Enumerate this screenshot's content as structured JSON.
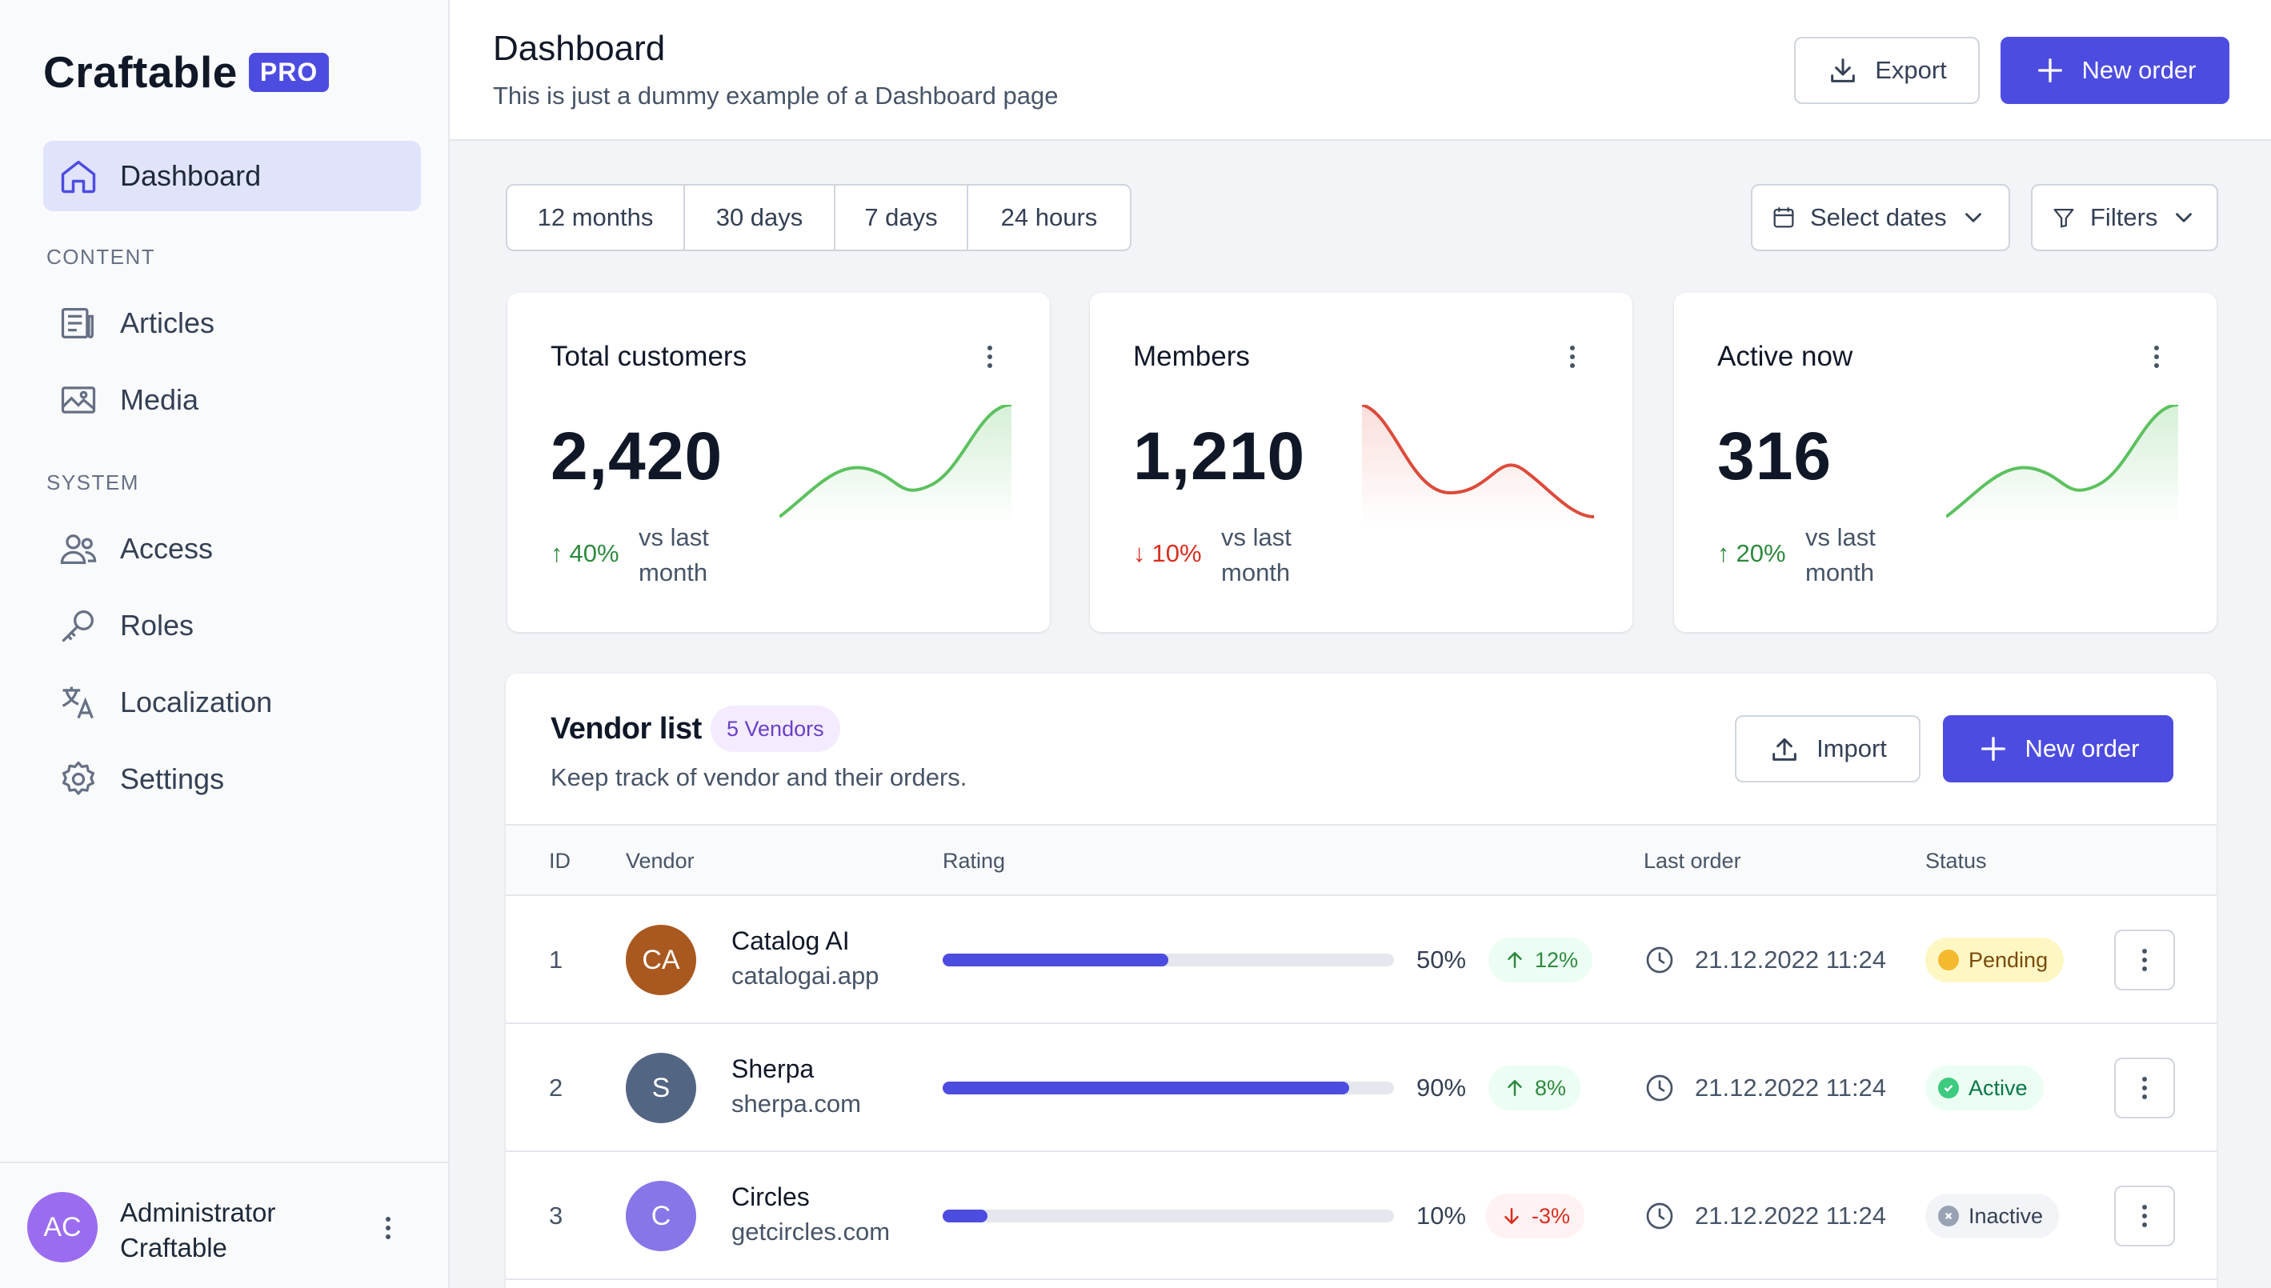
{
  "brand": {
    "name": "Craftable",
    "badge": "PRO"
  },
  "sidebar": {
    "items": [
      {
        "label": "Dashboard",
        "icon": "home-icon",
        "active": true
      },
      {
        "label": "Articles",
        "icon": "newspaper-icon"
      },
      {
        "label": "Media",
        "icon": "image-icon"
      },
      {
        "label": "Access",
        "icon": "users-icon"
      },
      {
        "label": "Roles",
        "icon": "key-icon"
      },
      {
        "label": "Localization",
        "icon": "translate-icon"
      },
      {
        "label": "Settings",
        "icon": "gear-icon"
      }
    ],
    "sections": {
      "content": "CONTENT",
      "system": "SYSTEM"
    },
    "user": {
      "initials": "AC",
      "name_line1": "Administrator",
      "name_line2": "Craftable"
    }
  },
  "header": {
    "title": "Dashboard",
    "subtitle": "This is just a dummy example of a Dashboard page",
    "export_label": "Export",
    "new_order_label": "New order"
  },
  "filters": {
    "ranges": [
      "12 months",
      "30 days",
      "7 days",
      "24 hours"
    ],
    "select_dates": "Select dates",
    "filters_label": "Filters"
  },
  "stats": [
    {
      "title": "Total customers",
      "value": "2,420",
      "trend": "40%",
      "direction": "up",
      "label": "vs last month"
    },
    {
      "title": "Members",
      "value": "1,210",
      "trend": "10%",
      "direction": "down",
      "label": "vs last month"
    },
    {
      "title": "Active now",
      "value": "316",
      "trend": "20%",
      "direction": "up",
      "label": "vs last month"
    }
  ],
  "colors": {
    "accent": "#4d4ce0",
    "up": "#2e8a3e",
    "down": "#d92d20",
    "spark_up": "#5cc15f",
    "spark_down": "#dc4a3b"
  },
  "vendors": {
    "title": "Vendor list",
    "badge": "5 Vendors",
    "subtitle": "Keep track of vendor and their orders.",
    "import_label": "Import",
    "new_order_label": "New order",
    "columns": {
      "id": "ID",
      "vendor": "Vendor",
      "rating": "Rating",
      "last_order": "Last order",
      "status": "Status"
    },
    "rows": [
      {
        "id": "1",
        "initials": "CA",
        "avatar_color": "#a9581f",
        "name": "Catalog AI",
        "domain": "catalogai.app",
        "rating": 0.5,
        "rating_label": "50%",
        "change": "12%",
        "change_dir": "up",
        "last_order": "21.12.2022 11:24",
        "status": "Pending"
      },
      {
        "id": "2",
        "initials": "S",
        "avatar_color": "#526583",
        "name": "Sherpa",
        "domain": "sherpa.com",
        "rating": 0.9,
        "rating_label": "90%",
        "change": "8%",
        "change_dir": "up",
        "last_order": "21.12.2022 11:24",
        "status": "Active"
      },
      {
        "id": "3",
        "initials": "C",
        "avatar_color": "#8676e8",
        "name": "Circles",
        "domain": "getcircles.com",
        "rating": 0.1,
        "rating_label": "10%",
        "change": "-3%",
        "change_dir": "down",
        "last_order": "21.12.2022 11:24",
        "status": "Inactive"
      }
    ]
  }
}
